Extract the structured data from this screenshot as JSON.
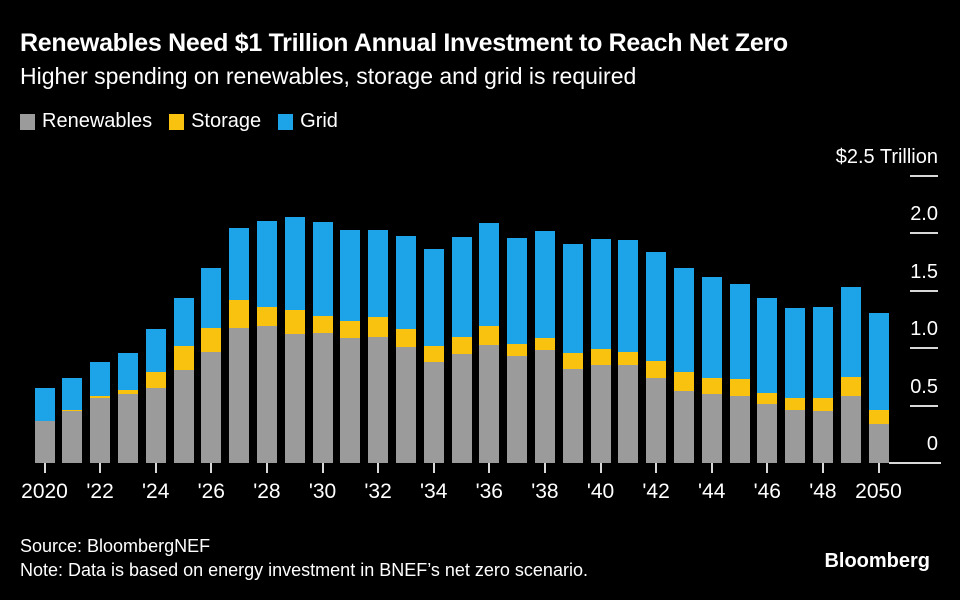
{
  "chart_data": {
    "type": "bar",
    "stacked": true,
    "title": "Renewables Need $1 Trillion Annual Investment to Reach Net Zero",
    "subtitle": "Higher spending on renewables, storage and grid is required",
    "unit": "USD trillion per year",
    "categories": [
      2020,
      2021,
      2022,
      2023,
      2024,
      2025,
      2026,
      2027,
      2028,
      2029,
      2030,
      2031,
      2032,
      2033,
      2034,
      2035,
      2036,
      2037,
      2038,
      2039,
      2040,
      2041,
      2042,
      2043,
      2044,
      2045,
      2046,
      2047,
      2048,
      2049,
      2050
    ],
    "series": [
      {
        "name": "Renewables",
        "color": "#9b9b9b",
        "values": [
          0.37,
          0.45,
          0.57,
          0.6,
          0.65,
          0.81,
          0.97,
          1.18,
          1.19,
          1.12,
          1.13,
          1.09,
          1.1,
          1.01,
          0.88,
          0.95,
          1.03,
          0.93,
          0.98,
          0.82,
          0.85,
          0.85,
          0.74,
          0.63,
          0.6,
          0.58,
          0.51,
          0.46,
          0.45,
          0.58,
          0.34
        ]
      },
      {
        "name": "Storage",
        "color": "#f9c20e",
        "values": [
          0.0,
          0.01,
          0.01,
          0.04,
          0.14,
          0.21,
          0.21,
          0.24,
          0.17,
          0.21,
          0.15,
          0.15,
          0.17,
          0.16,
          0.14,
          0.15,
          0.16,
          0.11,
          0.11,
          0.14,
          0.14,
          0.12,
          0.15,
          0.16,
          0.14,
          0.15,
          0.1,
          0.11,
          0.12,
          0.17,
          0.12
        ]
      },
      {
        "name": "Grid",
        "color": "#1ca3e8",
        "values": [
          0.28,
          0.28,
          0.3,
          0.32,
          0.38,
          0.42,
          0.52,
          0.63,
          0.75,
          0.81,
          0.82,
          0.79,
          0.76,
          0.81,
          0.84,
          0.87,
          0.9,
          0.92,
          0.93,
          0.95,
          0.96,
          0.97,
          0.95,
          0.91,
          0.88,
          0.83,
          0.83,
          0.78,
          0.79,
          0.78,
          0.85
        ]
      }
    ],
    "ylim": [
      0,
      2.5
    ],
    "grid": false,
    "legend_position": "top-left",
    "y_axis": {
      "position": "right",
      "ticks": [
        {
          "value": 0,
          "label": "0"
        },
        {
          "value": 0.5,
          "label": "0.5"
        },
        {
          "value": 1.0,
          "label": "1.0"
        },
        {
          "value": 1.5,
          "label": "1.5"
        },
        {
          "value": 2.0,
          "label": "2.0"
        },
        {
          "value": 2.5,
          "label": "$2.5 Trillion"
        }
      ]
    },
    "x_axis": {
      "tick_interval": 2,
      "tick_labels": [
        "2020",
        "'22",
        "'24",
        "'26",
        "'28",
        "'30",
        "'32",
        "'34",
        "'36",
        "'38",
        "'40",
        "'42",
        "'44",
        "'46",
        "'48",
        "2050"
      ]
    }
  },
  "footer": {
    "source": "Source: BloombergNEF",
    "note": "Note: Data is based on energy investment in BNEF’s net zero scenario.",
    "logo": "Bloomberg"
  },
  "colors": {
    "background": "#000000",
    "text": "#ffffff",
    "axis": "#d8d8d8"
  }
}
